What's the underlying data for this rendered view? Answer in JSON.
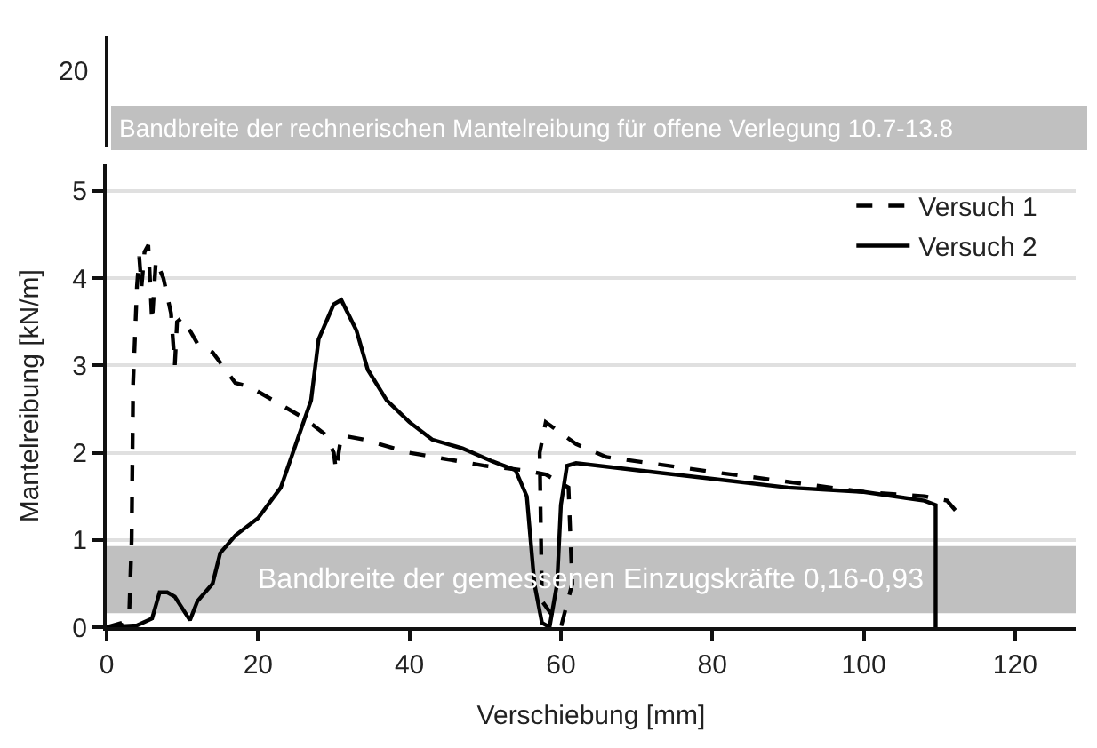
{
  "chart_data": {
    "type": "line",
    "xlabel": "Verschiebung [mm]",
    "ylabel": "Mantelreibung [kN/m]",
    "xlim": [
      0,
      128
    ],
    "xticks": [
      0,
      20,
      40,
      60,
      80,
      100,
      120
    ],
    "ylim": [
      0,
      5.3
    ],
    "yticks": [
      0,
      1,
      2,
      3,
      4,
      5
    ],
    "grid": "y",
    "legend": "top right",
    "marker": "none",
    "annotations": [
      "20",
      "Bandbreite der rechnerischen Mantelreibung für offene Verlegung 10.7-13.8"
    ],
    "series": [
      {
        "name": "Versuch 1",
        "color": "#000000",
        "line_style": "dashed",
        "x": [
          0,
          2,
          3,
          3.3,
          3.5,
          4,
          4.3,
          4.6,
          5,
          5.5,
          6,
          6.5,
          7.5,
          8.5,
          9,
          9.3,
          10,
          12,
          14,
          17,
          19,
          22,
          26,
          29,
          30,
          30.3,
          31,
          34,
          40,
          50,
          55,
          58,
          61,
          61.5,
          60,
          57.5,
          57.2,
          58,
          62,
          66,
          80,
          100,
          108,
          111,
          112.5
        ],
        "values": [
          0,
          0.05,
          0.2,
          1,
          2.8,
          3.9,
          4.25,
          3.9,
          4.3,
          4.38,
          3.5,
          4.2,
          4.0,
          3.6,
          3.0,
          3.5,
          3.55,
          3.25,
          3.15,
          2.8,
          2.75,
          2.6,
          2.4,
          2.2,
          2.0,
          1.8,
          2.2,
          2.15,
          2.0,
          1.85,
          1.8,
          1.75,
          1.6,
          0.5,
          0,
          0.3,
          2.0,
          2.35,
          2.1,
          1.95,
          1.78,
          1.55,
          1.5,
          1.45,
          1.3
        ]
      },
      {
        "name": "Versuch 2",
        "color": "#000000",
        "line_style": "solid",
        "x": [
          0,
          4,
          6,
          7,
          8,
          9,
          11,
          12,
          14,
          15,
          17,
          20,
          23,
          25,
          27,
          28,
          30,
          31,
          33,
          34.5,
          37,
          40,
          43,
          47,
          51,
          54,
          55.5,
          56.5,
          57.5,
          58.5,
          59.5,
          60,
          60.8,
          62,
          70,
          80,
          90,
          100,
          108,
          109.5,
          109.5
        ],
        "values": [
          0,
          0.02,
          0.1,
          0.4,
          0.4,
          0.35,
          0.08,
          0.3,
          0.5,
          0.85,
          1.05,
          1.25,
          1.6,
          2.1,
          2.6,
          3.3,
          3.7,
          3.75,
          3.4,
          2.95,
          2.6,
          2.35,
          2.15,
          2.05,
          1.9,
          1.8,
          1.5,
          0.5,
          0.05,
          0,
          0.5,
          1.4,
          1.85,
          1.88,
          1.8,
          1.7,
          1.6,
          1.55,
          1.45,
          1.4,
          0
        ]
      }
    ],
    "bands": [
      {
        "axis": "y",
        "from": 0.16,
        "to": 0.93,
        "label": "Bandbreite der gemessenen Einzugskräfte 0,16-0,93",
        "color": "#c0c0c0"
      }
    ]
  }
}
